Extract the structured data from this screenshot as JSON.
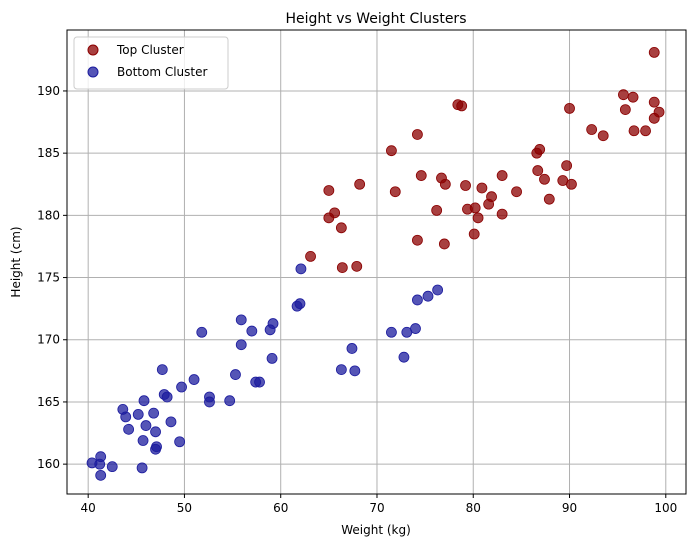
{
  "chart_data": {
    "type": "scatter",
    "title": "Height vs Weight Clusters",
    "xlabel": "Weight (kg)",
    "ylabel": "Height (cm)",
    "xlim": [
      37.8,
      102.1
    ],
    "ylim": [
      157.6,
      194.9
    ],
    "xticks": [
      40,
      50,
      60,
      70,
      80,
      90,
      100
    ],
    "yticks": [
      160,
      165,
      170,
      175,
      180,
      185,
      190
    ],
    "grid": true,
    "legend_position": "top-left",
    "series": [
      {
        "name": "Top Cluster",
        "color": "#8b0000",
        "points": [
          [
            98.8,
            193.1
          ],
          [
            95.6,
            189.7
          ],
          [
            96.6,
            189.5
          ],
          [
            95.8,
            188.5
          ],
          [
            98.8,
            189.1
          ],
          [
            99.3,
            188.3
          ],
          [
            97.9,
            186.8
          ],
          [
            96.7,
            186.8
          ],
          [
            98.8,
            187.8
          ],
          [
            92.3,
            186.9
          ],
          [
            93.5,
            186.4
          ],
          [
            90.0,
            188.6
          ],
          [
            78.4,
            188.9
          ],
          [
            78.8,
            188.8
          ],
          [
            74.2,
            186.5
          ],
          [
            71.5,
            185.2
          ],
          [
            86.9,
            185.3
          ],
          [
            86.6,
            185.0
          ],
          [
            86.7,
            183.6
          ],
          [
            87.4,
            182.9
          ],
          [
            89.3,
            182.8
          ],
          [
            89.7,
            184.0
          ],
          [
            90.2,
            182.5
          ],
          [
            87.9,
            181.3
          ],
          [
            74.6,
            183.2
          ],
          [
            76.7,
            183.0
          ],
          [
            77.1,
            182.5
          ],
          [
            79.2,
            182.4
          ],
          [
            80.9,
            182.2
          ],
          [
            83.0,
            183.2
          ],
          [
            84.5,
            181.9
          ],
          [
            81.9,
            181.5
          ],
          [
            81.6,
            180.9
          ],
          [
            80.2,
            180.6
          ],
          [
            79.4,
            180.5
          ],
          [
            80.5,
            179.8
          ],
          [
            83.0,
            180.1
          ],
          [
            76.2,
            180.4
          ],
          [
            74.2,
            178.0
          ],
          [
            77.0,
            177.7
          ],
          [
            80.1,
            178.5
          ],
          [
            65.0,
            182.0
          ],
          [
            68.2,
            182.5
          ],
          [
            71.9,
            181.9
          ],
          [
            65.0,
            179.8
          ],
          [
            65.6,
            180.2
          ],
          [
            66.3,
            179.0
          ],
          [
            63.1,
            176.7
          ],
          [
            66.4,
            175.8
          ],
          [
            67.9,
            175.9
          ]
        ]
      },
      {
        "name": "Bottom Cluster",
        "color": "#1c1c9e",
        "points": [
          [
            62.1,
            175.7
          ],
          [
            61.7,
            172.7
          ],
          [
            62.0,
            172.9
          ],
          [
            76.3,
            174.0
          ],
          [
            75.3,
            173.5
          ],
          [
            74.2,
            173.2
          ],
          [
            71.5,
            170.6
          ],
          [
            73.1,
            170.6
          ],
          [
            74.0,
            170.9
          ],
          [
            72.8,
            168.6
          ],
          [
            67.4,
            169.3
          ],
          [
            66.3,
            167.6
          ],
          [
            67.7,
            167.5
          ],
          [
            55.9,
            171.6
          ],
          [
            59.2,
            171.3
          ],
          [
            51.8,
            170.6
          ],
          [
            57.0,
            170.7
          ],
          [
            58.9,
            170.8
          ],
          [
            55.9,
            169.6
          ],
          [
            59.1,
            168.5
          ],
          [
            55.3,
            167.2
          ],
          [
            57.4,
            166.6
          ],
          [
            57.8,
            166.6
          ],
          [
            54.7,
            165.1
          ],
          [
            52.6,
            165.4
          ],
          [
            52.6,
            165.0
          ],
          [
            51.0,
            166.8
          ],
          [
            49.7,
            166.2
          ],
          [
            47.7,
            167.6
          ],
          [
            47.9,
            165.6
          ],
          [
            48.2,
            165.4
          ],
          [
            48.6,
            163.4
          ],
          [
            46.8,
            164.1
          ],
          [
            45.2,
            164.0
          ],
          [
            45.8,
            165.1
          ],
          [
            43.6,
            164.4
          ],
          [
            43.9,
            163.8
          ],
          [
            46.0,
            163.1
          ],
          [
            44.2,
            162.8
          ],
          [
            47.0,
            162.6
          ],
          [
            45.7,
            161.9
          ],
          [
            47.1,
            161.4
          ],
          [
            47.0,
            161.2
          ],
          [
            49.5,
            161.8
          ],
          [
            45.6,
            159.7
          ],
          [
            40.4,
            160.1
          ],
          [
            41.2,
            160.0
          ],
          [
            41.3,
            160.6
          ],
          [
            42.5,
            159.8
          ],
          [
            41.3,
            159.1
          ]
        ]
      }
    ]
  }
}
